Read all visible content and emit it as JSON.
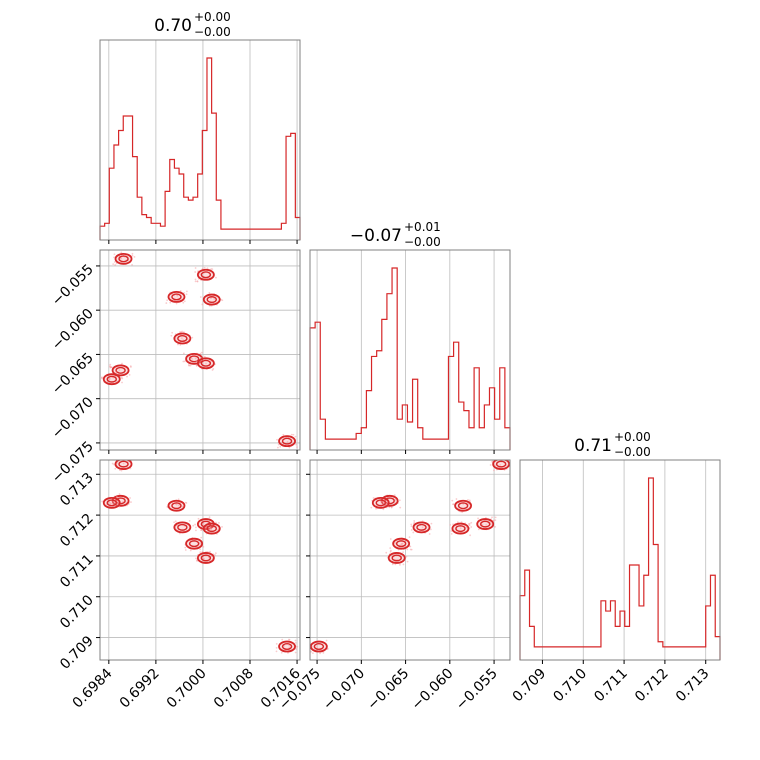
{
  "chart_data": {
    "type": "corner",
    "color": "#d62728",
    "density_color": "#f4a3a5",
    "grid": true,
    "parameters": [
      {
        "name": "p0",
        "title": {
          "value": "0.70",
          "upper": "+0.00",
          "lower": "−0.00"
        },
        "range": [
          0.69825,
          0.70165
        ],
        "ticks": [
          0.6984,
          0.6992,
          0.7,
          0.7008,
          0.7016
        ],
        "tick_labels": [
          "0.6984",
          "0.6992",
          "0.7000",
          "0.7008",
          "0.7016"
        ],
        "hist": [
          2,
          3,
          22,
          30,
          35,
          40,
          40,
          26,
          12,
          6,
          5,
          3,
          3,
          2,
          14,
          25,
          22,
          20,
          12,
          11,
          12,
          20,
          35,
          60,
          41,
          11,
          1,
          1,
          1,
          1,
          1,
          1,
          1,
          1,
          1,
          1,
          1,
          1,
          1,
          3,
          33,
          34,
          5
        ]
      },
      {
        "name": "p1",
        "title": {
          "value": "−0.07",
          "upper": "+0.01",
          "lower": "−0.00"
        },
        "range": [
          -0.0758,
          -0.0532
        ],
        "ticks": [
          -0.075,
          -0.07,
          -0.065,
          -0.06,
          -0.055
        ],
        "tick_labels": [
          "−0.075",
          "−0.070",
          "−0.065",
          "−0.060",
          "−0.055"
        ],
        "hist": [
          40,
          42,
          8,
          1,
          1,
          1,
          1,
          1,
          1,
          3,
          5,
          18,
          30,
          32,
          43,
          52,
          61,
          8,
          13,
          7,
          22,
          5,
          1,
          1,
          1,
          1,
          1,
          30,
          35,
          14,
          11,
          5,
          26,
          5,
          13,
          19,
          8,
          26,
          5
        ]
      },
      {
        "name": "p2",
        "title": {
          "value": "0.71",
          "upper": "+0.00",
          "lower": "−0.00"
        },
        "range": [
          0.70845,
          0.71335
        ],
        "ticks": [
          0.709,
          0.71,
          0.711,
          0.712,
          0.713
        ],
        "tick_labels": [
          "0.709",
          "0.710",
          "0.711",
          "0.712",
          "0.713"
        ],
        "hist": [
          11,
          16,
          5,
          1,
          1,
          1,
          1,
          1,
          1,
          1,
          1,
          1,
          1,
          1,
          1,
          1,
          1,
          10,
          8,
          10,
          5,
          8,
          5,
          17,
          17,
          9,
          15,
          34,
          21,
          2,
          1,
          1,
          1,
          1,
          1,
          1,
          1,
          1,
          1,
          9,
          15,
          3
        ]
      }
    ],
    "modes": [
      {
        "p0": 0.69865,
        "p1": -0.0542,
        "p2": 0.71325
      },
      {
        "p0": 0.69955,
        "p1": -0.0585,
        "p2": 0.71223
      },
      {
        "p0": 0.70005,
        "p1": -0.056,
        "p2": 0.71178
      },
      {
        "p0": 0.70015,
        "p1": -0.0588,
        "p2": 0.71167
      },
      {
        "p0": 0.69985,
        "p1": -0.0655,
        "p2": 0.7113
      },
      {
        "p0": 0.70005,
        "p1": -0.066,
        "p2": 0.71095
      },
      {
        "p0": 0.69965,
        "p1": -0.0632,
        "p2": 0.7117
      },
      {
        "p0": 0.6986,
        "p1": -0.0668,
        "p2": 0.71235
      },
      {
        "p0": 0.69845,
        "p1": -0.0678,
        "p2": 0.7123
      },
      {
        "p0": 0.70143,
        "p1": -0.0748,
        "p2": 0.70878
      }
    ]
  }
}
